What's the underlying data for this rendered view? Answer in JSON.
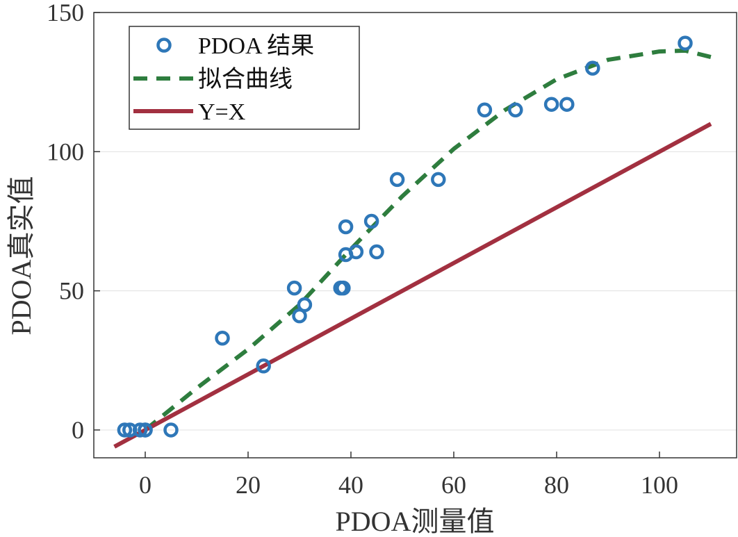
{
  "chart_data": {
    "type": "scatter",
    "xlabel": "PDOA测量值",
    "ylabel": "PDOA真实值",
    "xlim": [
      -10,
      115
    ],
    "ylim": [
      -10,
      150
    ],
    "xticks": [
      0,
      20,
      40,
      60,
      80,
      100
    ],
    "yticks": [
      0,
      50,
      100,
      150
    ],
    "xtick_labels": [
      "0",
      "20",
      "40",
      "60",
      "80",
      "100"
    ],
    "ytick_labels": [
      "0",
      "50",
      "100",
      "150"
    ],
    "grid": "horizontal",
    "legend_position": "top-left",
    "series": [
      {
        "name": "PDOA 结果",
        "type": "scatter",
        "color": "#2e77b8",
        "marker": "circle",
        "points": [
          [
            -4,
            0
          ],
          [
            -3,
            0
          ],
          [
            -1,
            0
          ],
          [
            0,
            0
          ],
          [
            0,
            0
          ],
          [
            5,
            0
          ],
          [
            15,
            33
          ],
          [
            23,
            23
          ],
          [
            29,
            51
          ],
          [
            30,
            41
          ],
          [
            31,
            45
          ],
          [
            38,
            51
          ],
          [
            38.5,
            51
          ],
          [
            39,
            63
          ],
          [
            39,
            73
          ],
          [
            41,
            64
          ],
          [
            44,
            75
          ],
          [
            45,
            64
          ],
          [
            49,
            90
          ],
          [
            57,
            90
          ],
          [
            66,
            115
          ],
          [
            72,
            115
          ],
          [
            79,
            117
          ],
          [
            82,
            117
          ],
          [
            87,
            130
          ],
          [
            105,
            139
          ]
        ]
      },
      {
        "name": "拟合曲线",
        "type": "line",
        "style": "dashed",
        "color": "#2e7d3e",
        "points": [
          [
            0,
            0
          ],
          [
            10,
            15
          ],
          [
            20,
            29
          ],
          [
            30,
            45
          ],
          [
            40,
            65
          ],
          [
            50,
            84
          ],
          [
            60,
            101
          ],
          [
            70,
            115
          ],
          [
            80,
            126
          ],
          [
            90,
            133
          ],
          [
            100,
            136
          ],
          [
            105,
            136.3
          ],
          [
            110,
            134
          ]
        ]
      },
      {
        "name": "Y=X",
        "type": "line",
        "style": "solid",
        "color": "#a23040",
        "points": [
          [
            -6,
            -6
          ],
          [
            110,
            110
          ]
        ]
      }
    ]
  }
}
